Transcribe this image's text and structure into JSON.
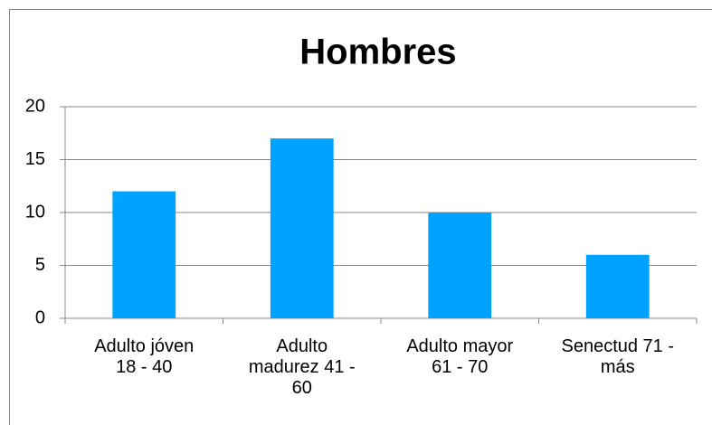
{
  "chart_data": {
    "type": "bar",
    "title": "Hombres",
    "categories": [
      "Adulto jóven 18 - 40",
      "Adulto madurez 41 - 60",
      "Adulto mayor 61 - 70",
      "Senectud 71 - más"
    ],
    "values": [
      12,
      17,
      10,
      6
    ],
    "color": "#00a2ff",
    "ylim": [
      0,
      20
    ],
    "yticks": [
      0,
      5,
      10,
      15,
      20
    ],
    "grid": true
  }
}
